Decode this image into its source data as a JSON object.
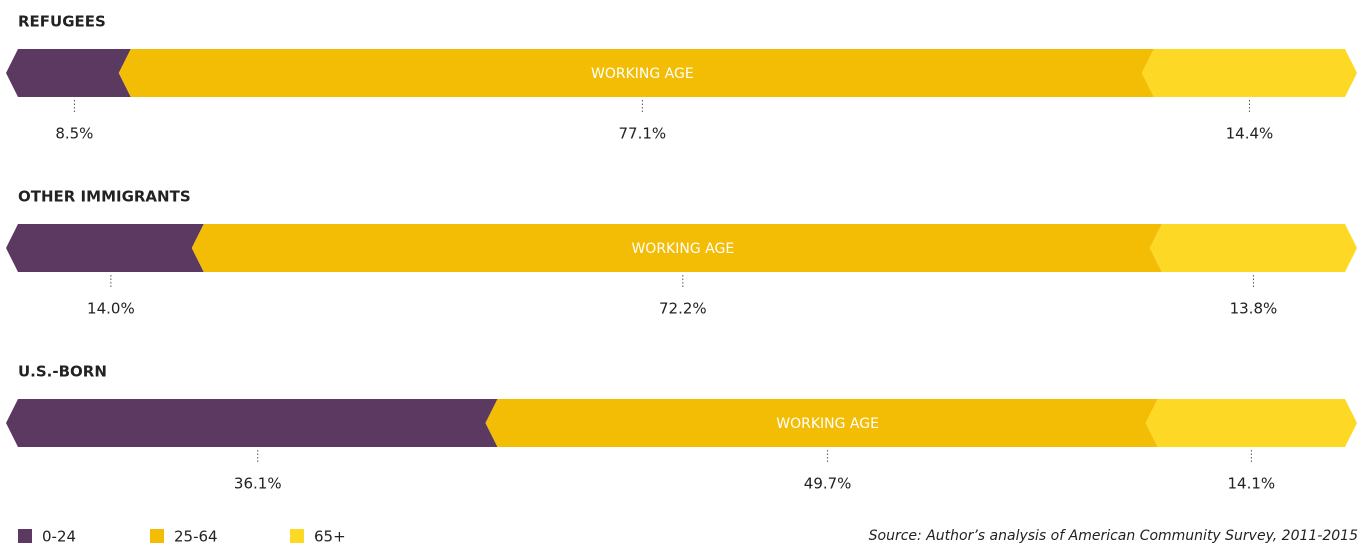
{
  "chart_data": {
    "type": "bar",
    "orientation": "horizontal",
    "stacked": true,
    "categories": [
      "REFUGEES",
      "OTHER IMMIGRANTS",
      "U.S.-BORN"
    ],
    "series": [
      {
        "name": "0-24",
        "color": "#5b3960",
        "values": [
          8.5,
          14.0,
          36.1
        ],
        "value_labels": [
          "8.5%",
          "14.0%",
          "36.1%"
        ]
      },
      {
        "name": "25-64",
        "color": "#f3bd05",
        "values": [
          77.1,
          72.2,
          49.7
        ],
        "value_labels": [
          "77.1%",
          "72.2%",
          "49.7%"
        ]
      },
      {
        "name": "65+",
        "color": "#fdd926",
        "values": [
          14.4,
          13.8,
          14.1
        ],
        "value_labels": [
          "14.4%",
          "13.8%",
          "14.1%"
        ]
      }
    ],
    "annotation": "WORKING AGE",
    "source": "Source: Author’s analysis of American Community Survey, 2011-2015"
  }
}
